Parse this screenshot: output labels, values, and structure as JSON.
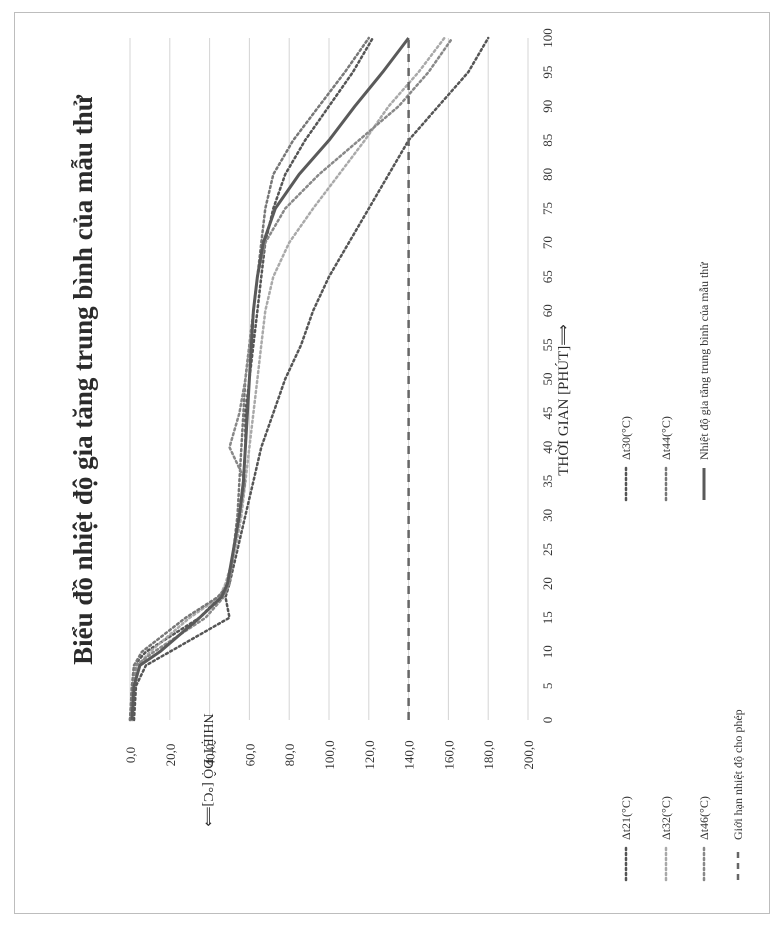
{
  "chart_data": {
    "type": "line",
    "title": "Biểu đồ nhiệt độ gia tăng trung bình của mẫu thử",
    "xlabel": "THỜI GIAN [PHÚT]⟹",
    "ylabel": "NHIỆT ĐỘ [°C]⟹",
    "x_ticks": [
      "0",
      "5",
      "10",
      "15",
      "20",
      "25",
      "30",
      "35",
      "40",
      "45",
      "50",
      "55",
      "60",
      "65",
      "70",
      "75",
      "80",
      "85",
      "90",
      "95",
      "100"
    ],
    "y_ticks": [
      "0,0",
      "20,0",
      "40,0",
      "60,0",
      "80,0",
      "100,0",
      "120,0",
      "140,0",
      "160,0",
      "180,0",
      "200,0"
    ],
    "xlim": [
      0,
      100
    ],
    "ylim": [
      0,
      200
    ],
    "grid": true,
    "legend_position": "bottom",
    "x": [
      0,
      5,
      8,
      10,
      15,
      18,
      20,
      25,
      30,
      35,
      40,
      45,
      50,
      55,
      60,
      65,
      70,
      75,
      80,
      85,
      90,
      95,
      100
    ],
    "series": [
      {
        "name": "Δt21(°C)",
        "color": "#555555",
        "dash": "dot",
        "values": [
          2,
          3,
          8,
          20,
          50,
          48,
          50,
          54,
          58,
          62,
          66,
          72,
          78,
          86,
          92,
          100,
          110,
          120,
          130,
          140,
          155,
          170,
          180
        ]
      },
      {
        "name": "Δt30(°C)",
        "color": "#555555",
        "dash": "dot",
        "values": [
          0,
          1,
          2,
          8,
          35,
          45,
          50,
          52,
          55,
          57,
          58,
          58,
          60,
          62,
          64,
          66,
          68,
          72,
          78,
          88,
          100,
          112,
          122
        ]
      },
      {
        "name": "Δt32(°C)",
        "color": "#a9a9a9",
        "dash": "dot",
        "values": [
          1,
          2,
          4,
          10,
          30,
          45,
          48,
          53,
          56,
          58,
          60,
          62,
          64,
          66,
          68,
          72,
          80,
          92,
          105,
          118,
          130,
          145,
          158
        ]
      },
      {
        "name": "Δt44(°C)",
        "color": "#777777",
        "dash": "dot",
        "values": [
          0,
          1,
          2,
          6,
          28,
          44,
          50,
          52,
          54,
          55,
          56,
          57,
          58,
          60,
          62,
          64,
          66,
          68,
          72,
          82,
          95,
          108,
          120
        ]
      },
      {
        "name": "Δt46(°C)",
        "color": "#888888",
        "dash": "dot",
        "values": [
          1,
          2,
          3,
          12,
          38,
          47,
          50,
          52,
          55,
          58,
          50,
          55,
          58,
          60,
          62,
          64,
          68,
          78,
          95,
          115,
          135,
          150,
          162
        ]
      },
      {
        "name": "Nhiệt độ gia tăng trung bình của mẫu thử",
        "color": "#5a5a5a",
        "dash": "solid",
        "width": 3,
        "values": [
          1,
          2,
          5,
          15,
          35,
          46,
          49,
          52,
          55,
          57,
          58,
          59,
          60,
          61,
          62,
          64,
          67,
          73,
          85,
          100,
          113,
          127,
          140
        ]
      },
      {
        "name": "Giới hạn nhiệt độ cho phép",
        "color": "#666666",
        "dash": "dash",
        "width": 2.5,
        "values": [
          140,
          140,
          140,
          140,
          140,
          140,
          140,
          140,
          140,
          140,
          140,
          140,
          140,
          140,
          140,
          140,
          140,
          140,
          140,
          140,
          140,
          140,
          140
        ]
      }
    ],
    "legend_layout": [
      {
        "series": 0,
        "col": 0,
        "row": 0
      },
      {
        "series": 2,
        "col": 0,
        "row": 1
      },
      {
        "series": 4,
        "col": 0,
        "row": 2
      },
      {
        "series": 6,
        "col": 0,
        "row": 3
      },
      {
        "series": 1,
        "col": 1,
        "row": 0
      },
      {
        "series": 3,
        "col": 1,
        "row": 1
      },
      {
        "series": 5,
        "col": 1,
        "row": 2
      }
    ]
  }
}
